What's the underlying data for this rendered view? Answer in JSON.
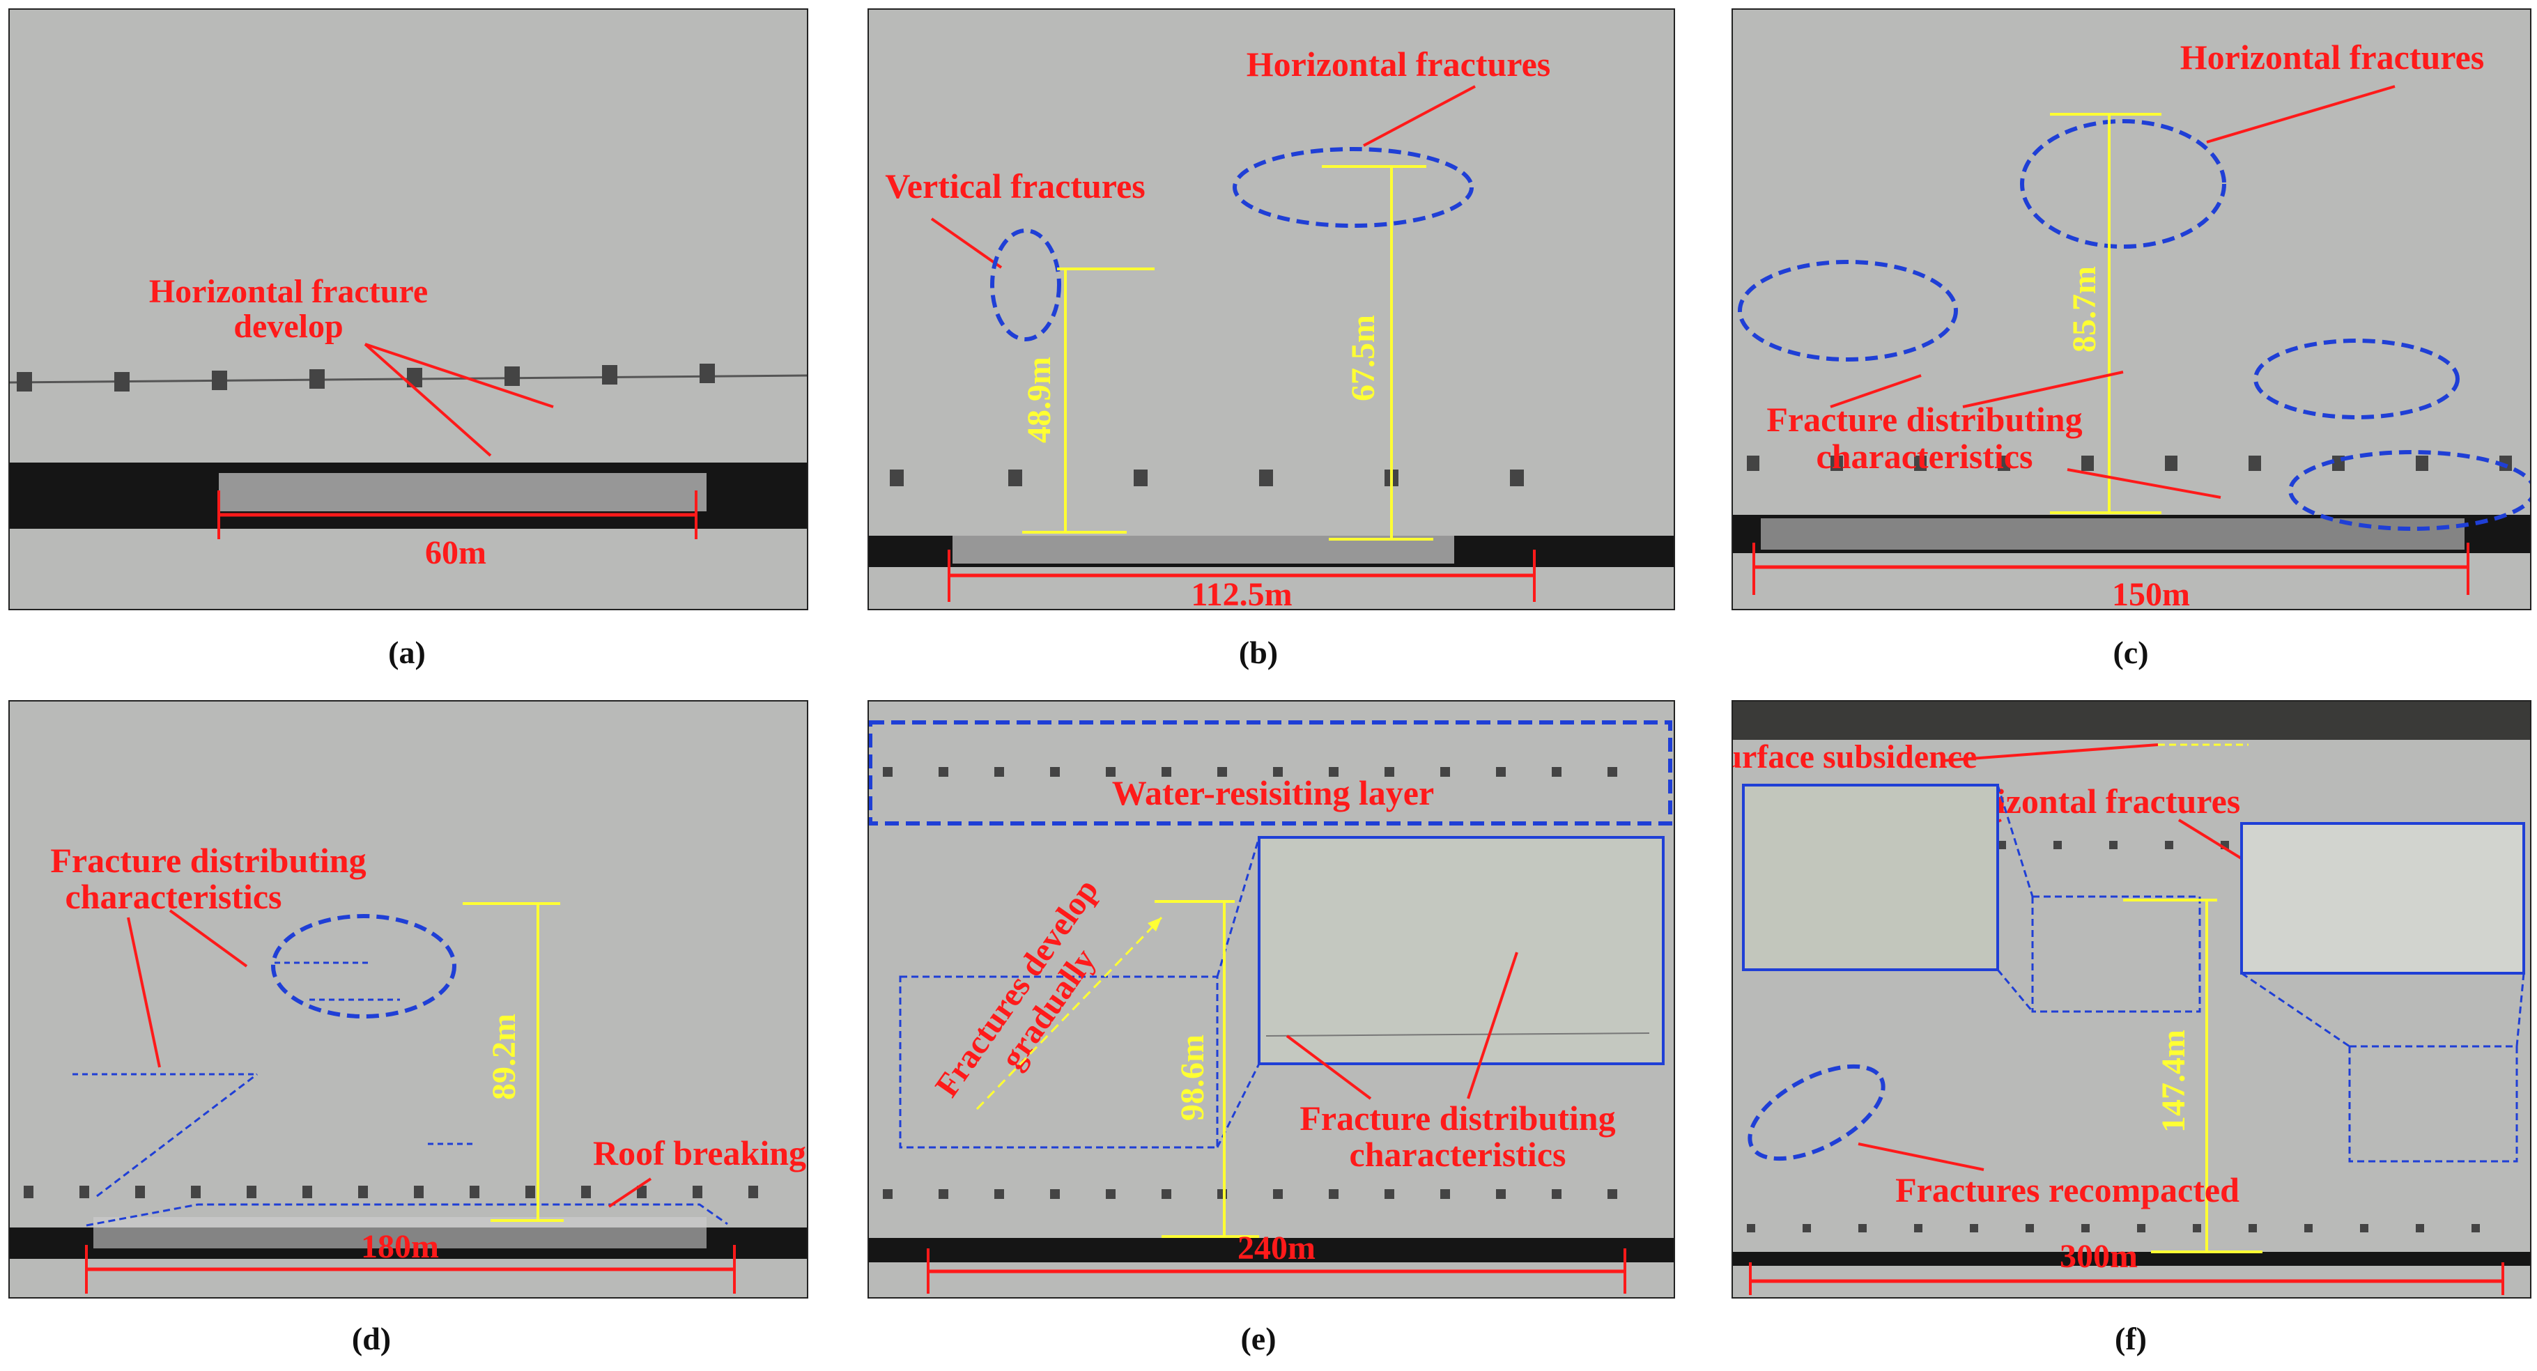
{
  "colors": {
    "annotation_red": "#ff1a1a",
    "measure_yellow": "#ffff33",
    "ellipse_blue": "#1f3fd6",
    "rock_gray": "#b9bab8",
    "coal_black": "#151515"
  },
  "panels": [
    {
      "caption": "(a)",
      "labels": {
        "fracture_develop_1": "Horizontal fracture",
        "fracture_develop_2": "develop",
        "width": "60m"
      }
    },
    {
      "caption": "(b)",
      "labels": {
        "horizontal": "Horizontal fractures",
        "vertical": "Vertical fractures",
        "height_1": "48.9m",
        "height_2": "67.5m",
        "width": "112.5m"
      }
    },
    {
      "caption": "(c)",
      "labels": {
        "horizontal": "Horizontal fractures",
        "height": "85.7m",
        "distribution_1": "Fracture distributing",
        "distribution_2": "characteristics",
        "width": "150m"
      }
    },
    {
      "caption": "(d)",
      "labels": {
        "distribution_1": "Fracture distributing",
        "distribution_2": "characteristics",
        "height": "89.2m",
        "roof": "Roof breaking",
        "width": "180m"
      }
    },
    {
      "caption": "(e)",
      "labels": {
        "water_layer": "Water-resisiting layer",
        "gradual_1": "Fractures develop",
        "gradual_2": "gradually",
        "height": "98.6m",
        "distribution_1": "Fracture distributing",
        "distribution_2": "characteristics",
        "width": "240m"
      }
    },
    {
      "caption": "(f)",
      "labels": {
        "subsidence": "Surface subsidence",
        "horizontal": "Horizontal fractures",
        "height": "147.4m",
        "recompacted": "Fractures recompacted",
        "width": "300m"
      }
    }
  ]
}
